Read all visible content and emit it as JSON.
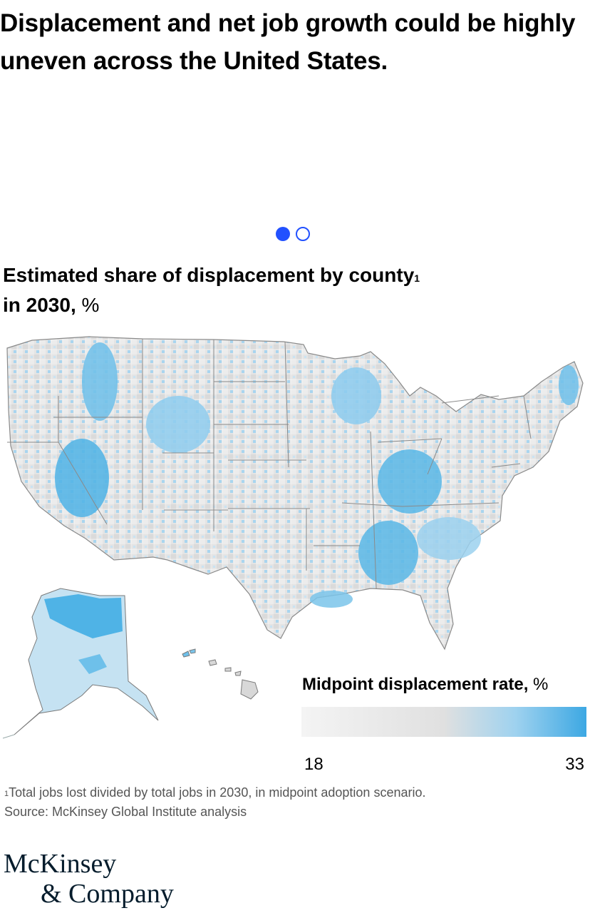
{
  "headline": "Displacement and net job growth could be highly uneven across the United States.",
  "pager": {
    "slides": 2,
    "active_index": 0
  },
  "chart": {
    "title_main": "Estimated share of displacement by county",
    "title_sup": "1",
    "title_mid": " in 2030,",
    "title_unit": " %"
  },
  "chart_data": {
    "type": "heatmap",
    "geography": "United States counties",
    "legend_title": "Midpoint displacement rate,",
    "legend_unit": " %",
    "scale_min": 18,
    "scale_max": 33,
    "scale_min_label": "18",
    "scale_max_label": "33",
    "colors": {
      "low": "#f4f4f4",
      "mid": "#e0e0e0",
      "high": "#3da8e3"
    }
  },
  "footnote": {
    "marker": "1",
    "text": "Total jobs lost divided by total jobs in 2030, in midpoint adoption scenario.",
    "source": "Source: McKinsey Global Institute analysis"
  },
  "logo": {
    "line1": "McKinsey",
    "line2": "& Company"
  },
  "colors": {
    "accent": "#2251ff",
    "border": "#6f6f6f",
    "brand": "#051c2c"
  }
}
